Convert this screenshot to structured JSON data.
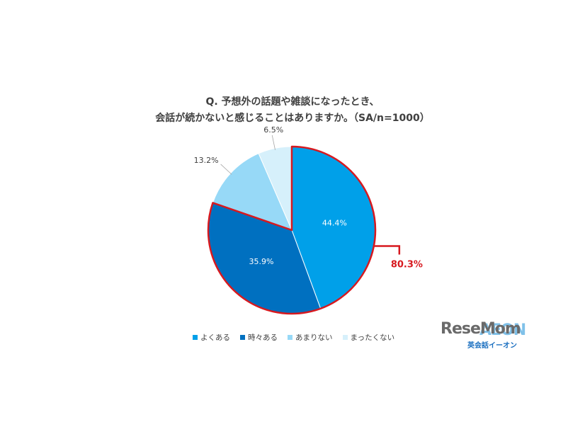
{
  "title": {
    "line1": "Q. 予想外の話題や雑談になったとき、",
    "line2": "会話が続かないと感じることはありますか。（SA/n=1000）"
  },
  "chart_data": {
    "type": "pie",
    "categories": [
      "よくある",
      "時々ある",
      "あまりない",
      "まったくない"
    ],
    "values": [
      44.4,
      35.9,
      13.2,
      6.5
    ],
    "labels": [
      "44.4%",
      "35.9%",
      "13.2%",
      "6.5%"
    ],
    "colors": [
      "#00a0e9",
      "#0070c0",
      "#97d9f7",
      "#d6f0fb"
    ],
    "highlight": {
      "label": "80.3%",
      "categories": [
        "よくある",
        "時々ある"
      ],
      "color": "#d7191f"
    },
    "legend_position": "bottom"
  },
  "logo": {
    "brand": "ReseMom",
    "watermark": "AEON",
    "subtitle": "英会話イーオン"
  }
}
